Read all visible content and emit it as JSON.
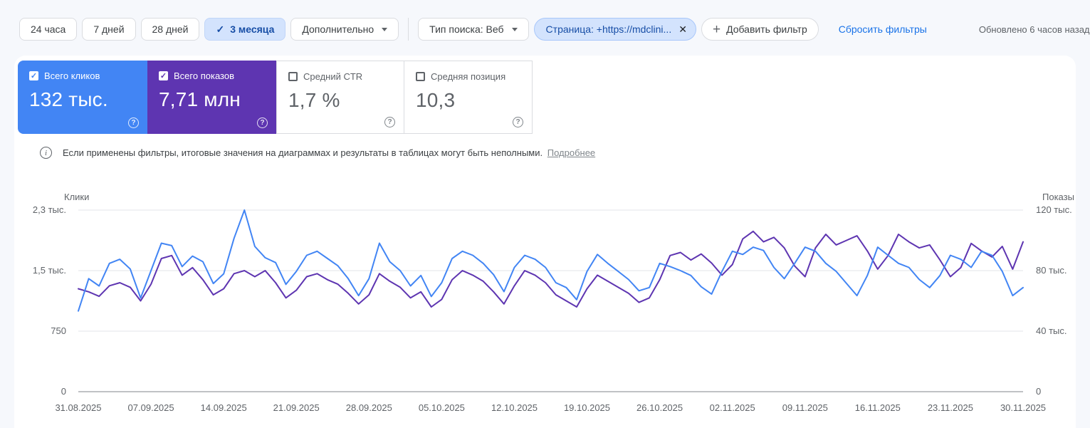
{
  "filter_bar": {
    "date_ranges": [
      {
        "label": "24 часа",
        "selected": false
      },
      {
        "label": "7 дней",
        "selected": false
      },
      {
        "label": "28 дней",
        "selected": false
      },
      {
        "label": "3 месяца",
        "selected": true
      }
    ],
    "check_glyph": "✓",
    "more_button": "Дополнительно",
    "search_type": "Тип поиска: Веб",
    "page_filter": "Страница: +https://mdclini...",
    "close_glyph": "✕",
    "plus_glyph": "+",
    "add_filter": "Добавить фильтр",
    "reset_filters": "Сбросить фильтры",
    "updated": "Обновлено 6 часов назад"
  },
  "metrics": [
    {
      "label": "Всего кликов",
      "value": "132 тыс.",
      "checked": true,
      "bg": "#4285f4",
      "help": "?"
    },
    {
      "label": "Всего показов",
      "value": "7,71 млн",
      "checked": true,
      "bg": "#5e35b1",
      "help": "?"
    },
    {
      "label": "Средний CTR",
      "value": "1,7 %",
      "checked": false,
      "bg": "#ffffff",
      "help": "?"
    },
    {
      "label": "Средняя позиция",
      "value": "10,3",
      "checked": false,
      "bg": "#ffffff",
      "help": "?"
    }
  ],
  "info_banner": {
    "icon": "i",
    "text": "Если применены фильтры, итоговые значения на диаграммах и результаты в таблицах могут быть неполными.",
    "link": "Подробнее"
  },
  "chart_data": {
    "type": "line",
    "left_axis": {
      "label": "Клики",
      "ticks": [
        "2,3 тыс.",
        "1,5 тыс.",
        "750",
        "0"
      ],
      "max": 2250,
      "min": 0
    },
    "right_axis": {
      "label": "Показы",
      "ticks": [
        "120 тыс.",
        "80 тыс.",
        "40 тыс.",
        "0"
      ],
      "max": 120000,
      "min": 0
    },
    "x_labels": [
      "31.08.2025",
      "07.09.2025",
      "14.09.2025",
      "21.09.2025",
      "28.09.2025",
      "05.10.2025",
      "12.10.2025",
      "19.10.2025",
      "26.10.2025",
      "02.11.2025",
      "09.11.2025",
      "16.11.2025",
      "23.11.2025",
      "30.11.2025"
    ],
    "grid": "horizontal",
    "legend": "none",
    "series": [
      {
        "name": "Показы",
        "color": "#5e35b1",
        "axis": "right",
        "values": [
          68000,
          66000,
          63000,
          70000,
          72000,
          69000,
          60000,
          71000,
          88000,
          90000,
          77000,
          82000,
          74000,
          64000,
          68000,
          78000,
          80000,
          76000,
          80000,
          72000,
          62000,
          67000,
          76000,
          78000,
          74000,
          71000,
          65000,
          58000,
          64000,
          78000,
          73000,
          69000,
          62000,
          66000,
          56000,
          61000,
          74000,
          80000,
          77000,
          73000,
          66000,
          58000,
          70000,
          80000,
          77000,
          72000,
          64000,
          60000,
          56000,
          68000,
          77000,
          73000,
          69000,
          65000,
          59000,
          62000,
          74000,
          90000,
          92000,
          87000,
          91000,
          85000,
          77000,
          84000,
          101000,
          106000,
          99000,
          102000,
          95000,
          83000,
          76000,
          95000,
          104000,
          97000,
          100000,
          103000,
          93000,
          81000,
          90000,
          104000,
          99000,
          95000,
          97000,
          87000,
          76000,
          82000,
          98000,
          93000,
          89000,
          96000,
          81000,
          99000
        ]
      },
      {
        "name": "Клики",
        "color": "#4285f4",
        "axis": "left",
        "values": [
          1000,
          1400,
          1310,
          1590,
          1640,
          1520,
          1160,
          1500,
          1840,
          1810,
          1550,
          1680,
          1610,
          1340,
          1460,
          1900,
          2250,
          1800,
          1660,
          1600,
          1330,
          1490,
          1690,
          1740,
          1650,
          1560,
          1400,
          1190,
          1400,
          1840,
          1610,
          1500,
          1310,
          1440,
          1180,
          1350,
          1650,
          1740,
          1690,
          1590,
          1450,
          1240,
          1540,
          1690,
          1640,
          1540,
          1350,
          1290,
          1140,
          1490,
          1700,
          1590,
          1490,
          1390,
          1250,
          1290,
          1590,
          1550,
          1500,
          1440,
          1300,
          1210,
          1490,
          1740,
          1700,
          1790,
          1750,
          1540,
          1400,
          1590,
          1790,
          1740,
          1590,
          1490,
          1340,
          1190,
          1440,
          1790,
          1690,
          1590,
          1540,
          1390,
          1290,
          1440,
          1690,
          1640,
          1540,
          1740,
          1690,
          1490,
          1190,
          1290
        ]
      }
    ]
  }
}
